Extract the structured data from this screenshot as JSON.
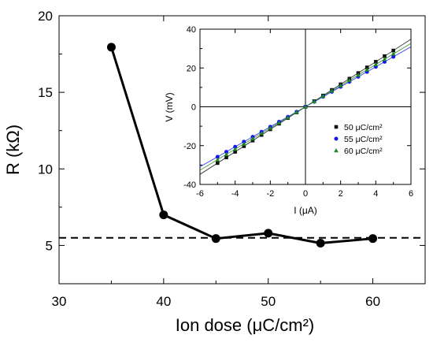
{
  "chart_data": [
    {
      "type": "line",
      "xlabel": "Ion dose (μC/cm²)",
      "ylabel": "R (kΩ)",
      "xlim": [
        30,
        65
      ],
      "ylim": [
        2.5,
        20
      ],
      "xticks": [
        "30",
        "40",
        "50",
        "60"
      ],
      "yticks": [
        "5",
        "10",
        "15",
        "20"
      ],
      "series": [
        {
          "x": [
            35,
            40,
            45,
            50,
            55,
            60
          ],
          "y": [
            17.95,
            7.0,
            5.45,
            5.8,
            5.15,
            5.45
          ]
        }
      ],
      "reference_line": {
        "y": 5.5,
        "style": "dashed"
      },
      "grid": false
    },
    {
      "type": "scatter",
      "xlabel": "I (μA)",
      "ylabel": "V (mV)",
      "xlim": [
        -6,
        6
      ],
      "ylim": [
        -40,
        40
      ],
      "xticks": [
        "-6",
        "-4",
        "-2",
        "0",
        "2",
        "4",
        "6"
      ],
      "yticks": [
        "-40",
        "-20",
        "0",
        "20",
        "40"
      ],
      "legend_placement": "bottom-right",
      "series": [
        {
          "name": "50 μC/cm²",
          "color": "#111111",
          "marker": "square",
          "slope": 5.8,
          "x": [
            -5,
            -4.5,
            -4,
            -3.5,
            -3,
            -2.5,
            -2,
            -1.5,
            -1,
            -0.5,
            0,
            0.5,
            1,
            1.5,
            2,
            2.5,
            3,
            3.5,
            4,
            4.5,
            5
          ],
          "y": [
            -29,
            -26.1,
            -23.2,
            -20.3,
            -17.4,
            -14.5,
            -11.6,
            -8.7,
            -5.8,
            -2.9,
            0,
            2.9,
            5.8,
            8.7,
            11.6,
            14.5,
            17.4,
            20.3,
            23.2,
            26.1,
            29
          ]
        },
        {
          "name": "55 μC/cm²",
          "color": "#1515ee",
          "marker": "circle",
          "slope": 5.15,
          "x": [
            -5,
            -4.5,
            -4,
            -3.5,
            -3,
            -2.5,
            -2,
            -1.5,
            -1,
            -0.5,
            0,
            0.5,
            1,
            1.5,
            2,
            2.5,
            3,
            3.5,
            4,
            4.5,
            5
          ],
          "y": [
            -25.8,
            -23.2,
            -20.6,
            -18,
            -15.5,
            -12.9,
            -10.3,
            -7.7,
            -5.2,
            -2.6,
            0,
            2.6,
            5.2,
            7.7,
            10.3,
            12.9,
            15.5,
            18,
            20.6,
            23.2,
            25.8
          ]
        },
        {
          "name": "60 μC/cm²",
          "color": "#1f8a1f",
          "marker": "triangle",
          "slope": 5.45,
          "x": [
            -5,
            -4.5,
            -4,
            -3.5,
            -3,
            -2.5,
            -2,
            -1.5,
            -1,
            -0.5,
            0,
            0.5,
            1,
            1.5,
            2,
            2.5,
            3,
            3.5,
            4,
            4.5,
            5
          ],
          "y": [
            -27.3,
            -24.5,
            -21.8,
            -19.1,
            -16.4,
            -13.6,
            -10.9,
            -8.2,
            -5.5,
            -2.7,
            0,
            2.7,
            5.5,
            8.2,
            10.9,
            13.6,
            16.4,
            19.1,
            21.8,
            24.5,
            27.3
          ]
        }
      ]
    }
  ]
}
